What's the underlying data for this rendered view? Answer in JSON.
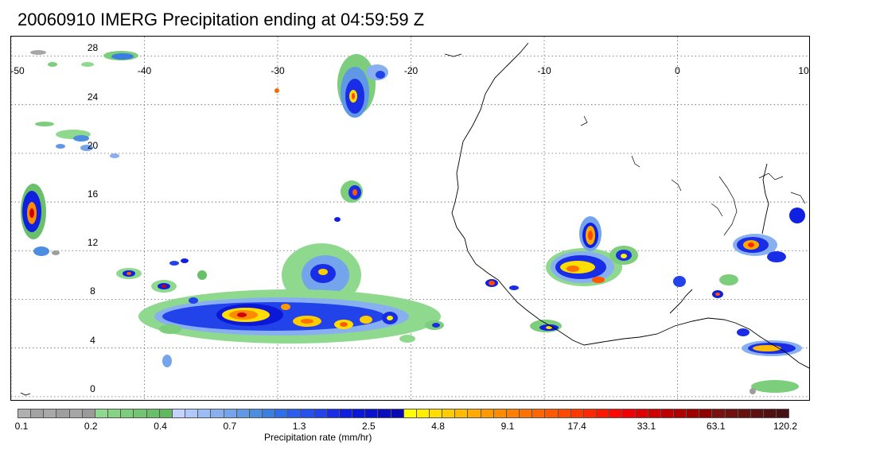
{
  "title": "20060910 IMERG Precipitation ending at 04:59:59 Z",
  "map": {
    "lon_range": [
      -50,
      10
    ],
    "lat_range": [
      -0.4,
      29.6
    ],
    "lon_labels": [
      "-50",
      "-40",
      "-30",
      "-20",
      "-10",
      "0",
      "10"
    ],
    "lat_labels": [
      "28",
      "24",
      "20",
      "16",
      "12",
      "8",
      "4",
      "0"
    ],
    "lon_values": [
      -50,
      -40,
      -30,
      -20,
      -10,
      0,
      10
    ],
    "lat_values": [
      28,
      24,
      20,
      16,
      12,
      8,
      4,
      0
    ],
    "grid": "dotted",
    "coastline_color": "#000000",
    "region": "Tropical Atlantic / West Africa"
  },
  "colorbar": {
    "label": "Precipitation rate (mm/hr)",
    "tick_labels": [
      "0.1",
      "0.2",
      "0.4",
      "0.7",
      "1.3",
      "2.5",
      "4.8",
      "9.1",
      "17.4",
      "33.1",
      "63.1",
      "120.2"
    ],
    "colors": [
      "#b0b0b0",
      "#a2a2a2",
      "#a8a8a8",
      "#9e9e9e",
      "#a6a6a6",
      "#9a9a9a",
      "#8ed98e",
      "#84d484",
      "#7ccd7c",
      "#72c672",
      "#6abf6a",
      "#60b860",
      "#c4d4ff",
      "#b0c8fa",
      "#9cbcf5",
      "#88b0f0",
      "#74a4eb",
      "#6098e6",
      "#4c8ce1",
      "#3a7ee0",
      "#2e6ee8",
      "#2a5ef0",
      "#2650ee",
      "#2242ea",
      "#1a2de6",
      "#1020e0",
      "#0c18d8",
      "#0a12cc",
      "#0a0cc0",
      "#0a08b4",
      "#ffff00",
      "#ffee00",
      "#ffdd00",
      "#ffcc00",
      "#ffbb00",
      "#ffaa00",
      "#ff9900",
      "#ff8c00",
      "#ff7f00",
      "#ff7200",
      "#ff6500",
      "#ff5800",
      "#ff4800",
      "#ff3800",
      "#ff2800",
      "#ff1800",
      "#ff0800",
      "#f00000",
      "#e00000",
      "#d00000",
      "#c00000",
      "#b00000",
      "#a00000",
      "#900000",
      "#7a1010",
      "#701010",
      "#661010",
      "#5c1010",
      "#521010",
      "#481010"
    ]
  }
}
